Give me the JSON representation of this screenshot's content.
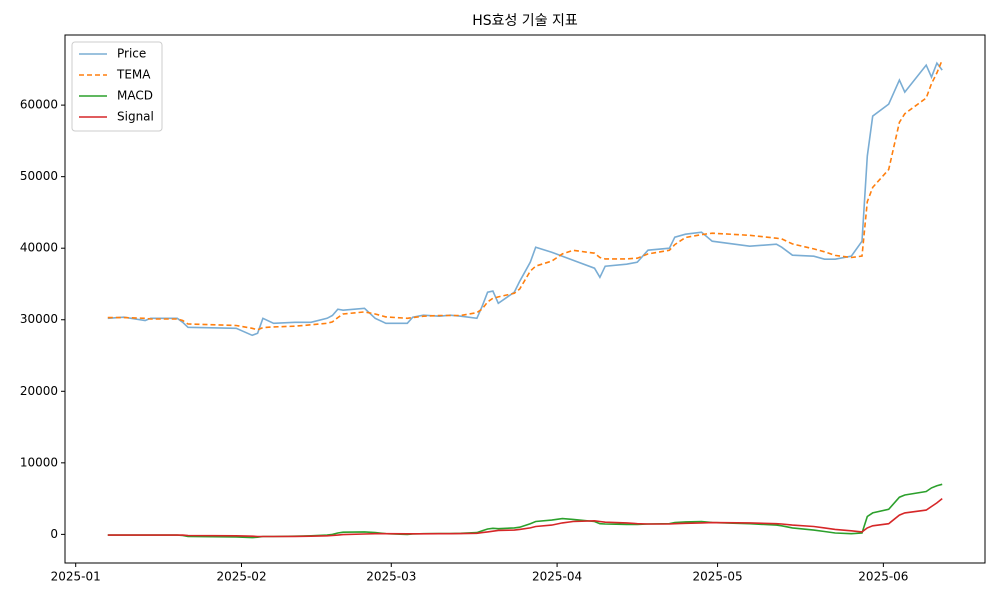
{
  "chart_data": {
    "type": "line",
    "title": "HS효성 기술 지표",
    "x": [
      "2025-01-07",
      "2025-01-10",
      "2025-01-14",
      "2025-01-15",
      "2025-01-20",
      "2025-01-21",
      "2025-01-22",
      "2025-01-31",
      "2025-02-03",
      "2025-02-04",
      "2025-02-05",
      "2025-02-07",
      "2025-02-11",
      "2025-02-14",
      "2025-02-17",
      "2025-02-18",
      "2025-02-19",
      "2025-02-20",
      "2025-02-24",
      "2025-02-26",
      "2025-02-28",
      "2025-03-04",
      "2025-03-05",
      "2025-03-07",
      "2025-03-10",
      "2025-03-12",
      "2025-03-14",
      "2025-03-17",
      "2025-03-18",
      "2025-03-19",
      "2025-03-20",
      "2025-03-21",
      "2025-03-24",
      "2025-03-25",
      "2025-03-27",
      "2025-03-28",
      "2025-03-31",
      "2025-04-02",
      "2025-04-04",
      "2025-04-08",
      "2025-04-09",
      "2025-04-10",
      "2025-04-14",
      "2025-04-16",
      "2025-04-18",
      "2025-04-22",
      "2025-04-23",
      "2025-04-25",
      "2025-04-28",
      "2025-04-30",
      "2025-05-07",
      "2025-05-12",
      "2025-05-13",
      "2025-05-15",
      "2025-05-19",
      "2025-05-21",
      "2025-05-23",
      "2025-05-26",
      "2025-05-28",
      "2025-05-29",
      "2025-05-30",
      "2025-06-02",
      "2025-06-04",
      "2025-06-05",
      "2025-06-09",
      "2025-06-10",
      "2025-06-11",
      "2025-06-12"
    ],
    "series": [
      {
        "name": "Price",
        "color": "#7aadd4",
        "style": "solid",
        "values": [
          30200,
          30350,
          29900,
          30200,
          30200,
          29650,
          28950,
          28800,
          27830,
          28100,
          30200,
          29500,
          29650,
          29650,
          30200,
          30600,
          31470,
          31330,
          31600,
          30200,
          29500,
          29500,
          30350,
          30630,
          30490,
          30630,
          30490,
          30200,
          31900,
          33850,
          34000,
          32300,
          33850,
          35380,
          38040,
          40140,
          39440,
          38880,
          38320,
          37200,
          35940,
          37480,
          37760,
          38040,
          39720,
          40000,
          41540,
          41960,
          42240,
          40980,
          40280,
          40560,
          40140,
          39020,
          38880,
          38460,
          38460,
          38880,
          40980,
          52870,
          58460,
          60140,
          63500,
          61820,
          65590,
          63920,
          65870,
          64900
        ]
      },
      {
        "name": "TEMA",
        "color": "#ff7f0e",
        "style": "dashed",
        "values": [
          30300,
          30300,
          30200,
          30100,
          30100,
          29900,
          29400,
          29200,
          28800,
          28600,
          28900,
          29000,
          29100,
          29300,
          29500,
          29700,
          30300,
          30800,
          31100,
          30800,
          30400,
          30200,
          30300,
          30500,
          30600,
          30600,
          30600,
          31000,
          31500,
          32500,
          33000,
          33200,
          33700,
          34300,
          36800,
          37500,
          38200,
          39200,
          39700,
          39300,
          38700,
          38500,
          38500,
          38600,
          39200,
          39700,
          40500,
          41500,
          41900,
          42100,
          41800,
          41400,
          41300,
          40600,
          39900,
          39500,
          39000,
          38700,
          38900,
          46500,
          48500,
          51000,
          57600,
          58800,
          61000,
          63000,
          64500,
          66300
        ]
      },
      {
        "name": "MACD",
        "color": "#2ca02c",
        "style": "solid",
        "values": [
          -100,
          -100,
          -100,
          -100,
          -100,
          -150,
          -300,
          -350,
          -450,
          -400,
          -300,
          -300,
          -250,
          -200,
          -100,
          0,
          200,
          300,
          350,
          250,
          100,
          0,
          50,
          100,
          120,
          130,
          150,
          250,
          500,
          750,
          850,
          800,
          900,
          1000,
          1500,
          1800,
          2000,
          2200,
          2100,
          1800,
          1500,
          1450,
          1400,
          1400,
          1450,
          1500,
          1650,
          1750,
          1800,
          1650,
          1500,
          1300,
          1200,
          900,
          600,
          400,
          200,
          100,
          200,
          2500,
          3000,
          3500,
          5200,
          5500,
          6000,
          6500,
          6800,
          7000
        ]
      },
      {
        "name": "Signal",
        "color": "#d62728",
        "style": "solid",
        "values": [
          -100,
          -100,
          -100,
          -100,
          -100,
          -100,
          -150,
          -200,
          -250,
          -300,
          -300,
          -300,
          -280,
          -250,
          -200,
          -150,
          -100,
          -30,
          50,
          100,
          100,
          80,
          80,
          80,
          90,
          100,
          110,
          150,
          250,
          350,
          450,
          550,
          600,
          700,
          900,
          1100,
          1300,
          1600,
          1800,
          1900,
          1800,
          1700,
          1600,
          1500,
          1450,
          1450,
          1500,
          1550,
          1600,
          1650,
          1600,
          1500,
          1450,
          1300,
          1100,
          900,
          700,
          500,
          350,
          900,
          1200,
          1500,
          2700,
          3000,
          3400,
          3900,
          4400,
          5000
        ]
      }
    ],
    "xlim": [
      "2024-12-30",
      "2025-06-20"
    ],
    "xticks": [
      {
        "value": "2025-01-01",
        "label": "2025-01"
      },
      {
        "value": "2025-02-01",
        "label": "2025-02"
      },
      {
        "value": "2025-03-01",
        "label": "2025-03"
      },
      {
        "value": "2025-04-01",
        "label": "2025-04"
      },
      {
        "value": "2025-05-01",
        "label": "2025-05"
      },
      {
        "value": "2025-06-01",
        "label": "2025-06"
      }
    ],
    "ylim": [
      -4000,
      69800
    ],
    "yticks": [
      0,
      10000,
      20000,
      30000,
      40000,
      50000,
      60000
    ],
    "grid": false,
    "legend": "upper left"
  }
}
